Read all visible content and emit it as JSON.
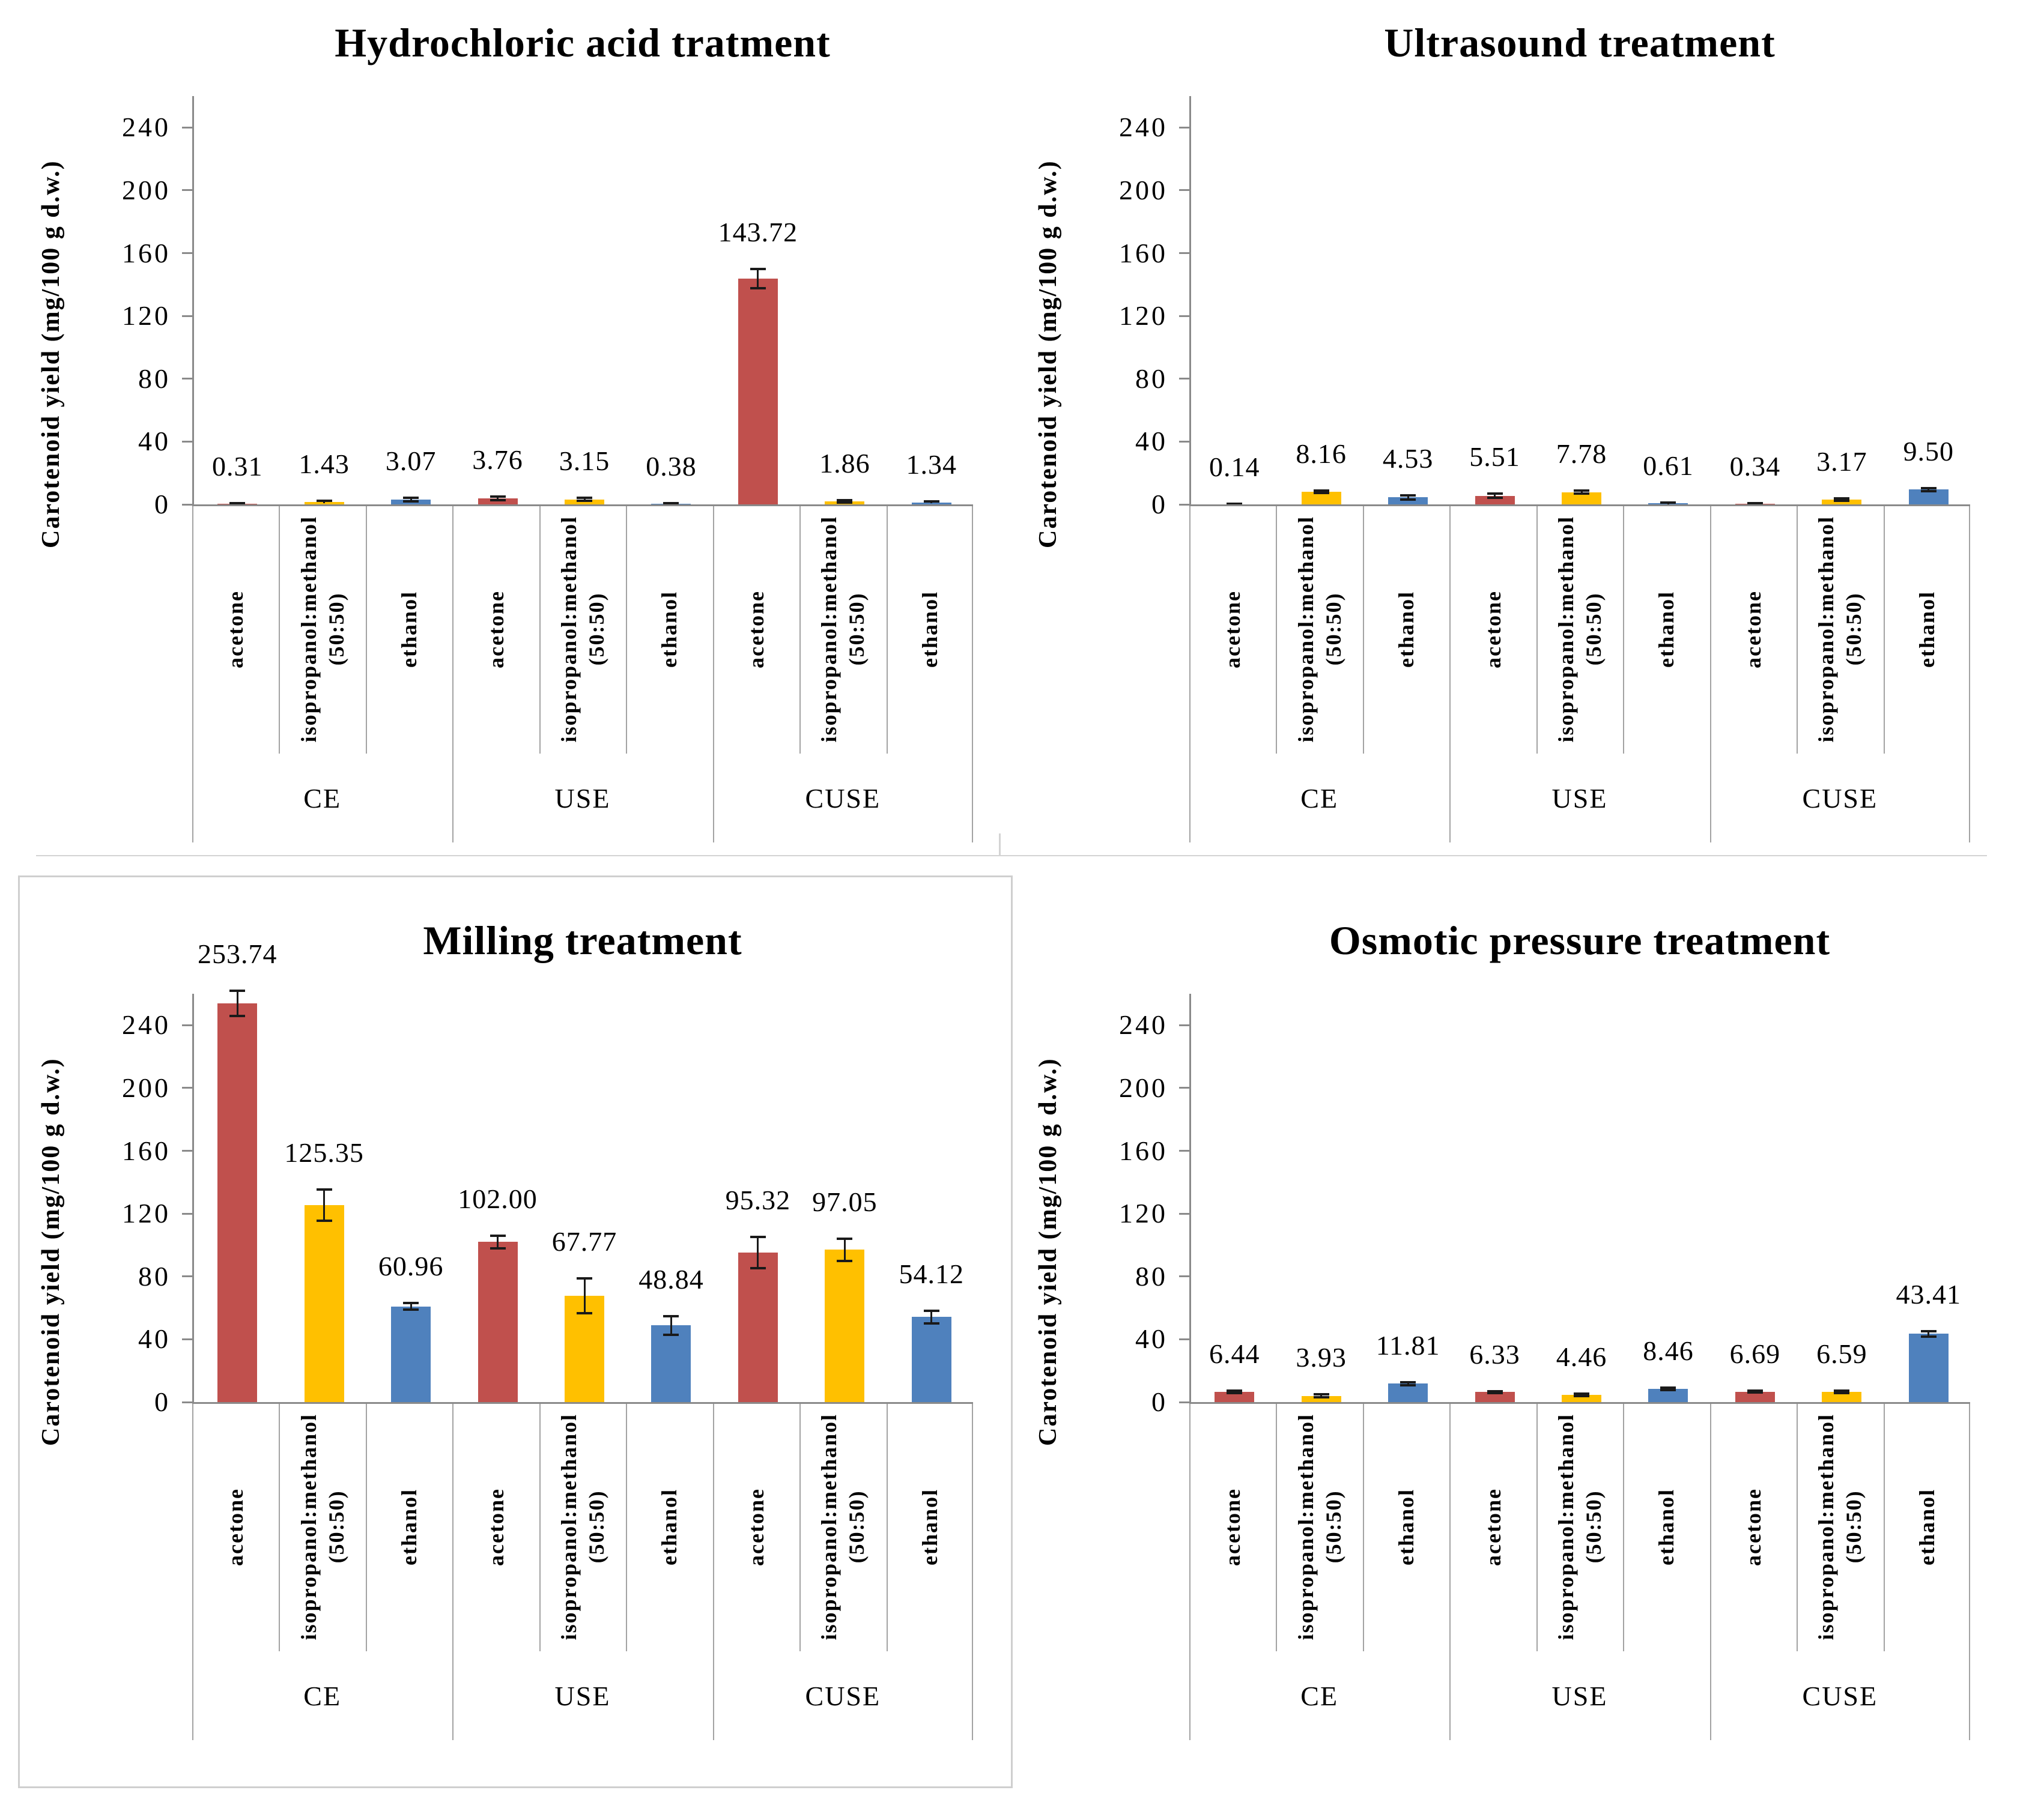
{
  "figure": {
    "series_colors": [
      "#C0504D",
      "#FFC000",
      "#4F81BD"
    ],
    "solvent_label_lines": [
      [
        "acetone"
      ],
      [
        "isopropanol:methanol",
        "(50:50)"
      ],
      [
        "ethanol"
      ]
    ],
    "axis_color": "#8A8A8A",
    "error_bar_color": "#1A1A1A",
    "frame_color": "#CFCFCF"
  },
  "chart_data": [
    {
      "type": "bar",
      "title": "Hydrochloric acid tratment",
      "ylabel": "Carotenoid yield (mg/100 g d.w.)",
      "ylim": [
        0,
        260
      ],
      "yticks": [
        0,
        40,
        80,
        120,
        160,
        200,
        240
      ],
      "grid": false,
      "legend": "none",
      "groups": [
        "CE",
        "USE",
        "CUSE"
      ],
      "categories": [
        "acetone",
        "isopropanol:methanol (50:50)",
        "ethanol"
      ],
      "values": [
        0.31,
        1.43,
        3.07,
        3.76,
        3.15,
        0.38,
        143.72,
        1.86,
        1.34
      ],
      "value_labels": [
        "0.31",
        "1.43",
        "3.07",
        "3.76",
        "3.15",
        "0.38",
        "143.72",
        "1.86",
        "1.34"
      ],
      "errors": [
        0.5,
        0.8,
        1.0,
        1.2,
        1.0,
        0.4,
        6.0,
        0.8,
        0.6
      ]
    },
    {
      "type": "bar",
      "title": "Ultrasound treatment",
      "ylabel": "Carotenoid yield (mg/100 g d.w.)",
      "ylim": [
        0,
        260
      ],
      "yticks": [
        0,
        40,
        80,
        120,
        160,
        200,
        240
      ],
      "grid": false,
      "legend": "none",
      "groups": [
        "CE",
        "USE",
        "CUSE"
      ],
      "categories": [
        "acetone",
        "isopropanol:methanol (50:50)",
        "ethanol"
      ],
      "values": [
        0.14,
        8.16,
        4.53,
        5.51,
        7.78,
        0.61,
        0.34,
        3.17,
        9.5
      ],
      "value_labels": [
        "0.14",
        "8.16",
        "4.53",
        "5.51",
        "7.78",
        "0.61",
        "0.34",
        "3.17",
        "9.50"
      ],
      "errors": [
        0.3,
        0.8,
        1.3,
        1.4,
        1.0,
        0.5,
        0.3,
        0.8,
        1.0
      ]
    },
    {
      "type": "bar",
      "title": "Milling treatment",
      "ylabel": "Carotenoid yield (mg/100 g d.w.)",
      "ylim": [
        0,
        260
      ],
      "yticks": [
        0,
        40,
        80,
        120,
        160,
        200,
        240
      ],
      "grid": false,
      "legend": "none",
      "groups": [
        "CE",
        "USE",
        "CUSE"
      ],
      "categories": [
        "acetone",
        "isopropanol:methanol (50:50)",
        "ethanol"
      ],
      "values": [
        253.74,
        125.35,
        60.96,
        102.0,
        67.77,
        48.84,
        95.32,
        97.05,
        54.12
      ],
      "value_labels": [
        "253.74",
        "125.35",
        "60.96",
        "102.00",
        "67.77",
        "48.84",
        "95.32",
        "97.05",
        "54.12"
      ],
      "errors": [
        8.0,
        10.0,
        2.0,
        4.0,
        11.0,
        6.0,
        10.0,
        7.0,
        4.0
      ]
    },
    {
      "type": "bar",
      "title": "Osmotic pressure treatment",
      "ylabel": "Carotenoid yield (mg/100 g d.w.)",
      "ylim": [
        0,
        260
      ],
      "yticks": [
        0,
        40,
        80,
        120,
        160,
        200,
        240
      ],
      "grid": false,
      "legend": "none",
      "groups": [
        "CE",
        "USE",
        "CUSE"
      ],
      "categories": [
        "acetone",
        "isopropanol:methanol (50:50)",
        "ethanol"
      ],
      "values": [
        6.44,
        3.93,
        11.81,
        6.33,
        4.46,
        8.46,
        6.69,
        6.59,
        43.41
      ],
      "value_labels": [
        "6.44",
        "3.93",
        "11.81",
        "6.33",
        "4.46",
        "8.46",
        "6.69",
        "6.59",
        "43.41"
      ],
      "errors": [
        0.8,
        0.9,
        1.0,
        0.7,
        0.8,
        0.9,
        0.6,
        0.7,
        1.8
      ]
    }
  ]
}
